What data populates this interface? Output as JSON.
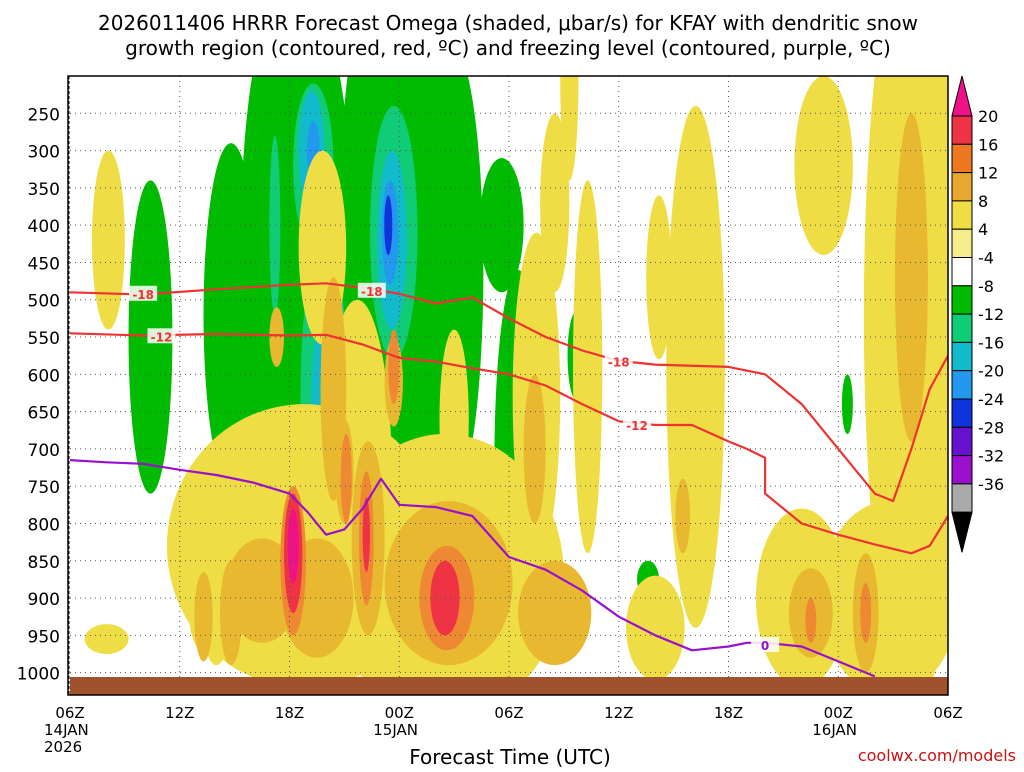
{
  "chart_data": {
    "type": "heatmap",
    "title": [
      "2026011406 HRRR Forecast Omega (shaded, μbar/s) for KFAY with dendritic snow",
      "growth region (contoured, red, ºC) and freezing level (contoured, purple, ºC)"
    ],
    "xlabel": "Forecast Time (UTC)",
    "ylabel": "",
    "credit": "coolwx.com/models",
    "x_range_hours": [
      0,
      48
    ],
    "y_range_mb": [
      200,
      1030
    ],
    "x_ticks": [
      {
        "h": 0,
        "lines": [
          "06Z",
          "14JAN",
          "2026"
        ]
      },
      {
        "h": 6,
        "lines": [
          "12Z"
        ]
      },
      {
        "h": 12,
        "lines": [
          "18Z"
        ]
      },
      {
        "h": 18,
        "lines": [
          "00Z",
          "15JAN"
        ]
      },
      {
        "h": 24,
        "lines": [
          "06Z"
        ]
      },
      {
        "h": 30,
        "lines": [
          "12Z"
        ]
      },
      {
        "h": 36,
        "lines": [
          "18Z"
        ]
      },
      {
        "h": 42,
        "lines": [
          "00Z",
          "16JAN"
        ]
      },
      {
        "h": 48,
        "lines": [
          "06Z"
        ]
      }
    ],
    "y_ticks": [
      250,
      300,
      350,
      400,
      450,
      500,
      550,
      600,
      650,
      700,
      750,
      800,
      850,
      900,
      950,
      1000
    ],
    "colorbar": {
      "labels": [
        "20",
        "16",
        "12",
        "8",
        "4",
        "-4",
        "-8",
        "-12",
        "-16",
        "-20",
        "-24",
        "-28",
        "-32",
        "-36"
      ],
      "colors_top_to_bottom": [
        "#ee1188",
        "#ee3344",
        "#ee7722",
        "#e8a830",
        "#eedd44",
        "#f6ec8a",
        "#ffffff",
        "#00bb00",
        "#11cc77",
        "#11bbcc",
        "#2299ee",
        "#1133dd",
        "#6611cc",
        "#9911cc",
        "#aaaaaa",
        "#000000"
      ]
    },
    "series": [
      {
        "name": "-18 ºC isotherm",
        "color": "#ee3333",
        "label": "-18",
        "points": [
          [
            0,
            490
          ],
          [
            4,
            493
          ],
          [
            8,
            486
          ],
          [
            12,
            480
          ],
          [
            14,
            478
          ],
          [
            16,
            484
          ],
          [
            18,
            492
          ],
          [
            20,
            505
          ],
          [
            22,
            497
          ],
          [
            24,
            525
          ],
          [
            26,
            550
          ],
          [
            28,
            568
          ],
          [
            30,
            582
          ],
          [
            32,
            587
          ],
          [
            36,
            590
          ],
          [
            38,
            600
          ],
          [
            40,
            640
          ],
          [
            42,
            700
          ],
          [
            44,
            760
          ],
          [
            45,
            770
          ],
          [
            46,
            700
          ],
          [
            47,
            620
          ],
          [
            48,
            575
          ]
        ],
        "label_at": [
          [
            4,
            492
          ],
          [
            16.5,
            488
          ],
          [
            30,
            583
          ]
        ]
      },
      {
        "name": "-12 ºC isotherm",
        "color": "#ee3333",
        "label": "-12",
        "points": [
          [
            0,
            545
          ],
          [
            4,
            548
          ],
          [
            8,
            546
          ],
          [
            12,
            548
          ],
          [
            14,
            547
          ],
          [
            16,
            560
          ],
          [
            18,
            578
          ],
          [
            20,
            583
          ],
          [
            22,
            592
          ],
          [
            24,
            600
          ],
          [
            26,
            615
          ],
          [
            28,
            640
          ],
          [
            30,
            663
          ],
          [
            32,
            668
          ],
          [
            34,
            668
          ],
          [
            36,
            690
          ],
          [
            37,
            700
          ],
          [
            38,
            712
          ],
          [
            38,
            760
          ],
          [
            40,
            800
          ],
          [
            42,
            815
          ],
          [
            44,
            828
          ],
          [
            46,
            840
          ],
          [
            47,
            830
          ],
          [
            48,
            790
          ]
        ],
        "label_at": [
          [
            5,
            549
          ],
          [
            31,
            668
          ]
        ]
      },
      {
        "name": "0 ºC freezing level",
        "color": "#9911cc",
        "label": "0",
        "points": [
          [
            0,
            715
          ],
          [
            2,
            718
          ],
          [
            4,
            720
          ],
          [
            6,
            728
          ],
          [
            8,
            735
          ],
          [
            10,
            745
          ],
          [
            12,
            760
          ],
          [
            13,
            785
          ],
          [
            14,
            815
          ],
          [
            15,
            808
          ],
          [
            16,
            780
          ],
          [
            17,
            740
          ],
          [
            18,
            775
          ],
          [
            20,
            778
          ],
          [
            22,
            790
          ],
          [
            24,
            845
          ],
          [
            26,
            862
          ],
          [
            28,
            890
          ],
          [
            30,
            925
          ],
          [
            32,
            950
          ],
          [
            34,
            970
          ],
          [
            36,
            965
          ],
          [
            37,
            960
          ],
          [
            38,
            960
          ],
          [
            40,
            965
          ],
          [
            42,
            985
          ],
          [
            44,
            1005
          ]
        ],
        "label_at": [
          [
            38,
            963
          ]
        ]
      }
    ],
    "omega_regions": [
      {
        "level": "-4",
        "blobs": [
          [
            4.4,
            550,
            1.2,
            210
          ],
          [
            8.8,
            520,
            1.5,
            230
          ],
          [
            11.2,
            450,
            1.9,
            330
          ],
          [
            13.3,
            535,
            2.4,
            420
          ],
          [
            16.1,
            440,
            1.4,
            320
          ],
          [
            17.5,
            380,
            1.9,
            270
          ],
          [
            19.7,
            480,
            2.1,
            400
          ],
          [
            20.9,
            460,
            1.7,
            300
          ],
          [
            23.6,
            400,
            1.2,
            90
          ],
          [
            27.7,
            575,
            0.5,
            60
          ],
          [
            24.5,
            720,
            1.3,
            260
          ],
          [
            13.2,
            840,
            0.6,
            80
          ],
          [
            42.5,
            640,
            0.3,
            40
          ],
          [
            31.6,
            875,
            0.6,
            25
          ],
          [
            14.3,
            370,
            1.2,
            130
          ],
          [
            17.3,
            630,
            2,
            70
          ]
        ]
      },
      {
        "level": "-8",
        "blobs": [
          [
            11.2,
            400,
            0.3,
            120
          ],
          [
            13.3,
            320,
            1.1,
            110
          ],
          [
            13.9,
            630,
            1.3,
            210
          ],
          [
            17.7,
            410,
            1.3,
            170
          ],
          [
            24.6,
            830,
            0.9,
            70
          ],
          [
            13.2,
            860,
            0.2,
            60
          ]
        ]
      },
      {
        "level": "-12",
        "blobs": [
          [
            13.2,
            300,
            0.7,
            80
          ],
          [
            14,
            640,
            0.8,
            130
          ],
          [
            17.6,
            420,
            0.8,
            120
          ],
          [
            24.6,
            835,
            0.55,
            45
          ]
        ]
      },
      {
        "level": "-16",
        "blobs": [
          [
            13.3,
            300,
            0.35,
            40
          ],
          [
            14.1,
            660,
            0.35,
            60
          ],
          [
            17.5,
            410,
            0.45,
            70
          ],
          [
            24.6,
            845,
            0.25,
            25
          ]
        ]
      },
      {
        "level": "-20",
        "blobs": [
          [
            17.4,
            400,
            0.22,
            40
          ],
          [
            24.6,
            848,
            0.12,
            12
          ]
        ]
      },
      {
        "level": "4",
        "blobs": [
          [
            2.1,
            420,
            0.9,
            120
          ],
          [
            27.3,
            200,
            0.5,
            140
          ],
          [
            26.5,
            370,
            0.8,
            120
          ],
          [
            25.5,
            630,
            1.3,
            220
          ],
          [
            28.3,
            590,
            0.8,
            250
          ],
          [
            32.2,
            470,
            0.7,
            110
          ],
          [
            34.2,
            590,
            1.6,
            350
          ],
          [
            46.2,
            520,
            2.8,
            520
          ],
          [
            44.8,
            900,
            3.8,
            130
          ],
          [
            40,
            900,
            2.5,
            120
          ],
          [
            41.2,
            320,
            1.6,
            120
          ],
          [
            12.8,
            830,
            7.5,
            190
          ],
          [
            20.5,
            870,
            6.5,
            190
          ],
          [
            32,
            940,
            1.6,
            70
          ],
          [
            7.5,
            920,
            1,
            55
          ],
          [
            2,
            955,
            1.2,
            20
          ],
          [
            8,
            900,
            0.9,
            90
          ],
          [
            15.7,
            740,
            1.9,
            240
          ],
          [
            13.8,
            430,
            1.3,
            130
          ],
          [
            33.6,
            780,
            0.6,
            60
          ],
          [
            21,
            660,
            0.8,
            120
          ]
        ]
      },
      {
        "level": "8",
        "blobs": [
          [
            11.3,
            550,
            0.4,
            40
          ],
          [
            14.4,
            620,
            0.7,
            150
          ],
          [
            15,
            730,
            0.5,
            70
          ],
          [
            16.3,
            820,
            0.9,
            130
          ],
          [
            20.7,
            880,
            3.5,
            110
          ],
          [
            17.7,
            610,
            0.5,
            60
          ],
          [
            13.5,
            900,
            2,
            80
          ],
          [
            26.5,
            920,
            2,
            70
          ],
          [
            10.5,
            890,
            2,
            70
          ],
          [
            40.5,
            920,
            1.2,
            60
          ],
          [
            46,
            470,
            0.9,
            220
          ],
          [
            43.5,
            920,
            0.7,
            80
          ],
          [
            25.4,
            700,
            0.6,
            100
          ],
          [
            33.5,
            790,
            0.4,
            50
          ],
          [
            8.8,
            920,
            0.6,
            70
          ],
          [
            7.3,
            925,
            0.5,
            60
          ]
        ]
      },
      {
        "level": "12",
        "blobs": [
          [
            12.2,
            850,
            0.7,
            100
          ],
          [
            20.6,
            900,
            1.5,
            70
          ],
          [
            16.2,
            820,
            0.4,
            90
          ],
          [
            15.1,
            740,
            0.3,
            60
          ],
          [
            17.7,
            590,
            0.3,
            50
          ],
          [
            43.5,
            920,
            0.3,
            40
          ],
          [
            40.5,
            930,
            0.3,
            30
          ]
        ]
      },
      {
        "level": "16",
        "blobs": [
          [
            12.2,
            840,
            0.5,
            80
          ],
          [
            20.5,
            900,
            0.8,
            50
          ],
          [
            16.2,
            815,
            0.2,
            50
          ]
        ]
      },
      {
        "level": "20",
        "blobs": [
          [
            12.2,
            830,
            0.3,
            50
          ]
        ]
      }
    ]
  }
}
